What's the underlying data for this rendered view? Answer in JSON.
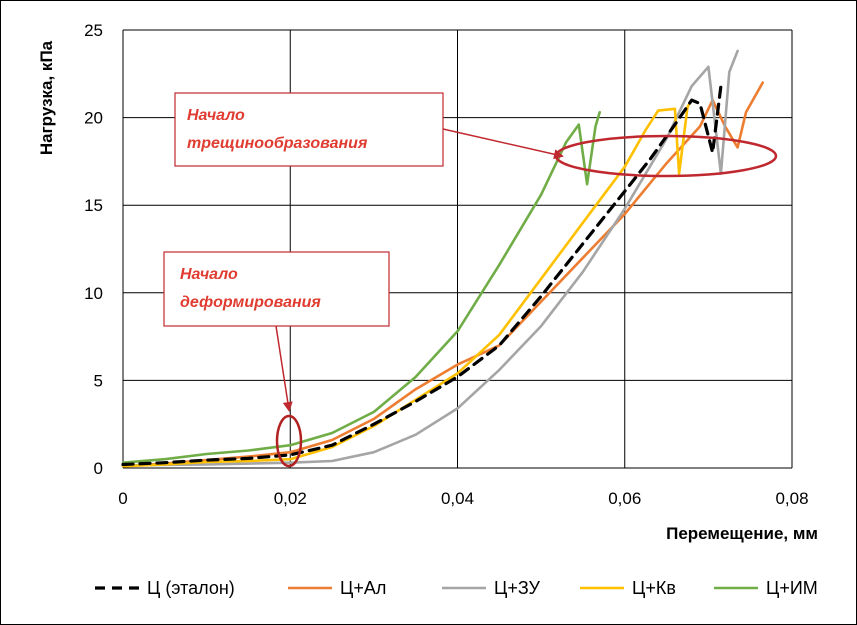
{
  "chart_data": {
    "type": "line",
    "title": "",
    "xlabel": "Перемещение, мм",
    "ylabel": "Нагрузка, кПа",
    "xlim": [
      0,
      0.08
    ],
    "ylim": [
      0,
      25
    ],
    "grid": true,
    "x_ticks": [
      0,
      0.02,
      0.04,
      0.06,
      0.08
    ],
    "x_tick_labels": [
      "0",
      "0,02",
      "0,04",
      "0,06",
      "0,08"
    ],
    "y_ticks": [
      0,
      5,
      10,
      15,
      20,
      25
    ],
    "y_tick_labels": [
      "0",
      "5",
      "10",
      "15",
      "20",
      "25"
    ],
    "legend_position": "bottom",
    "series": [
      {
        "name": "Ц (эталон)",
        "color": "#000000",
        "dashed": true,
        "x": [
          0,
          0.005,
          0.01,
          0.015,
          0.02,
          0.025,
          0.03,
          0.035,
          0.04,
          0.045,
          0.05,
          0.055,
          0.06,
          0.063,
          0.066,
          0.068,
          0.069,
          0.0705,
          0.0715
        ],
        "y": [
          0.2,
          0.3,
          0.45,
          0.55,
          0.75,
          1.3,
          2.5,
          3.8,
          5.2,
          7.0,
          9.8,
          12.8,
          15.8,
          17.6,
          19.6,
          21.0,
          20.8,
          18.0,
          21.8
        ]
      },
      {
        "name": "Ц+Ал",
        "color": "#ed7d31",
        "dashed": false,
        "x": [
          0,
          0.005,
          0.01,
          0.015,
          0.02,
          0.025,
          0.03,
          0.035,
          0.04,
          0.045,
          0.05,
          0.055,
          0.06,
          0.065,
          0.069,
          0.0705,
          0.072,
          0.0735,
          0.0745,
          0.0765
        ],
        "y": [
          0.1,
          0.25,
          0.45,
          0.65,
          0.9,
          1.6,
          2.8,
          4.5,
          5.9,
          7.0,
          9.5,
          12.0,
          14.5,
          17.4,
          19.5,
          21.0,
          19.5,
          18.3,
          20.3,
          22.0
        ]
      },
      {
        "name": "Ц+ЗУ",
        "color": "#a5a5a5",
        "dashed": false,
        "x": [
          0,
          0.01,
          0.02,
          0.025,
          0.03,
          0.035,
          0.04,
          0.045,
          0.05,
          0.055,
          0.06,
          0.065,
          0.068,
          0.07,
          0.0715,
          0.0725,
          0.0735
        ],
        "y": [
          0.15,
          0.2,
          0.3,
          0.4,
          0.9,
          1.9,
          3.4,
          5.6,
          8.1,
          11.2,
          14.8,
          18.8,
          21.8,
          22.9,
          16.8,
          22.6,
          23.8
        ]
      },
      {
        "name": "Ц+Кв",
        "color": "#ffc000",
        "dashed": false,
        "x": [
          0,
          0.005,
          0.01,
          0.015,
          0.02,
          0.025,
          0.03,
          0.035,
          0.04,
          0.045,
          0.05,
          0.055,
          0.06,
          0.0625,
          0.064,
          0.066,
          0.0665,
          0.0675,
          0.068
        ],
        "y": [
          0.1,
          0.2,
          0.35,
          0.4,
          0.5,
          1.2,
          2.4,
          3.9,
          5.4,
          7.6,
          10.8,
          14.0,
          17.2,
          19.3,
          20.4,
          20.5,
          16.8,
          20.6,
          21.0
        ]
      },
      {
        "name": "Ц+ИМ",
        "color": "#70ad47",
        "dashed": false,
        "x": [
          0,
          0.005,
          0.01,
          0.015,
          0.02,
          0.025,
          0.03,
          0.035,
          0.04,
          0.045,
          0.05,
          0.053,
          0.0545,
          0.0555,
          0.0565,
          0.057
        ],
        "y": [
          0.3,
          0.5,
          0.8,
          1.0,
          1.3,
          2.0,
          3.2,
          5.2,
          7.8,
          11.6,
          15.6,
          18.6,
          19.6,
          16.2,
          19.5,
          20.3
        ]
      }
    ],
    "annotations": [
      {
        "text_line1": "Начало",
        "text_line2": "трещинообразования",
        "target_x": 0.0625,
        "target_y": 17.9
      },
      {
        "text_line1": "Начало",
        "text_line2": "деформирования",
        "target_x": 0.02,
        "target_y": 1.3
      }
    ]
  }
}
